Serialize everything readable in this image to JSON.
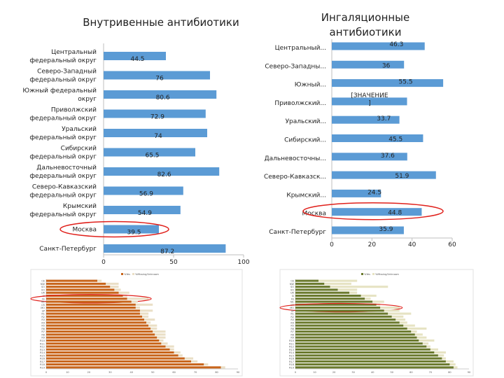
{
  "chart_data": [
    {
      "type": "bar",
      "orientation": "horizontal",
      "title": "Внутривенные антибиотики",
      "categories": [
        [
          "Центральный",
          "федеральный округ"
        ],
        [
          "Северо-Западный",
          "федеральный округ"
        ],
        [
          "Южный федеральный",
          "округ"
        ],
        [
          "Приволжский",
          "федеральный округ"
        ],
        [
          "Уральский",
          "федеральный округ"
        ],
        [
          "Сибирский",
          "федеральный округ"
        ],
        [
          "Дальневосточный",
          "федеральный округ"
        ],
        [
          "Северо-Кавказский",
          "федеральный округ"
        ],
        [
          "Крымский",
          "федеральный округ"
        ],
        [
          "Москва"
        ],
        [
          "Санкт-Петербург"
        ]
      ],
      "values": [
        44.5,
        76,
        80.6,
        72.9,
        74,
        65.5,
        82.6,
        56.9,
        54.9,
        39.5,
        87.2
      ],
      "value_labels": [
        "44.5",
        "76",
        "80.6",
        "72.9",
        "74",
        "65.5",
        "82.6",
        "56.9",
        "54.9",
        "39.5",
        "87.2"
      ],
      "xlim": [
        0,
        100
      ],
      "x_ticks": [
        "0",
        "50",
        "100"
      ],
      "bar_color": "#5B9BD5",
      "highlight": [
        "Москва"
      ],
      "highlight_color": "#E0201B"
    },
    {
      "type": "bar",
      "orientation": "horizontal",
      "title": "Ингаляционные антибиотики",
      "categories": [
        "Центральный...",
        "Северо-Западны...",
        "Южный...",
        "Приволжский...",
        "Уральский...",
        "Сибирский...",
        "Дальневосточны...",
        "Северо-Кавказск...",
        "Крымский...",
        "Москва",
        "Санкт-Петербург"
      ],
      "values": [
        46.3,
        36,
        55.5,
        37.5,
        33.7,
        45.5,
        37.6,
        51.9,
        24.5,
        44.8,
        35.9
      ],
      "value_labels": [
        "46.3",
        "36",
        "55.5",
        "[ЗНАЧЕНИЕ ]",
        "33.7",
        "45.5",
        "37.6",
        "51.9",
        "24.5",
        "44.8",
        "35.9"
      ],
      "xlim": [
        0,
        60
      ],
      "x_ticks": [
        "0",
        "20",
        "40",
        "60"
      ],
      "bar_color": "#5B9BD5",
      "highlight": [
        "Москва"
      ],
      "highlight_color": "#E0201B"
    },
    {
      "type": "bar",
      "orientation": "horizontal",
      "title": "",
      "legend": [
        "%Yes",
        "%Missing/Unknown"
      ],
      "categories": [
        "CE",
        "NW",
        "SO",
        "VO",
        "UR",
        "SI",
        "FE",
        "NC",
        "CR",
        "MO",
        "SP",
        "R1",
        "R2",
        "R3",
        "R4",
        "R5",
        "R6",
        "R7",
        "R8",
        "R9",
        "R10",
        "R11",
        "R12",
        "R13",
        "R14",
        "R15",
        "R16",
        "R17",
        "R18",
        "R19"
      ],
      "series": [
        {
          "name": "%Yes",
          "color": "#C8651B",
          "values": [
            24,
            28,
            30,
            32,
            34,
            36,
            38,
            40,
            42,
            42,
            44,
            44,
            45,
            46,
            47,
            48,
            49,
            50,
            51,
            52,
            53,
            54,
            56,
            58,
            60,
            62,
            65,
            68,
            74,
            82
          ]
        },
        {
          "name": "%Missing/Unknown",
          "color": "#EADFC6",
          "values": [
            2,
            6,
            4,
            3,
            5,
            2,
            10,
            3,
            8,
            2,
            6,
            4,
            3,
            5,
            2,
            4,
            3,
            6,
            5,
            4,
            2,
            3,
            4,
            2,
            3,
            2,
            4,
            3,
            2,
            2
          ]
        }
      ],
      "xlim": [
        0,
        90
      ],
      "x_ticks": [
        "0",
        "10",
        "20",
        "30",
        "40",
        "50",
        "60",
        "70",
        "80",
        "90"
      ],
      "highlight_row": 6,
      "highlight_color": "#E0201B"
    },
    {
      "type": "bar",
      "orientation": "horizontal",
      "title": "",
      "legend": [
        "%Yes",
        "%Missing/Unknown"
      ],
      "categories": [
        "CE",
        "NW",
        "SO",
        "VO",
        "UR",
        "SI",
        "FE",
        "NC",
        "CR",
        "MO",
        "SP",
        "R1",
        "R2",
        "R3",
        "R4",
        "R5",
        "R6",
        "R7",
        "R8",
        "R9",
        "R10",
        "R11",
        "R12",
        "R13",
        "R14",
        "R15",
        "R16",
        "R17",
        "R18",
        "R19"
      ],
      "series": [
        {
          "name": "%Yes",
          "color": "#6B7A2E",
          "values": [
            12,
            15,
            18,
            22,
            28,
            34,
            36,
            40,
            42,
            44,
            46,
            48,
            50,
            52,
            54,
            56,
            58,
            60,
            62,
            63,
            64,
            66,
            68,
            70,
            72,
            74,
            76,
            78,
            80,
            82
          ]
        },
        {
          "name": "%Missing/Unknown",
          "color": "#E6E3C3",
          "values": [
            20,
            14,
            30,
            10,
            4,
            8,
            3,
            6,
            2,
            10,
            8,
            12,
            6,
            5,
            4,
            6,
            10,
            3,
            4,
            5,
            8,
            3,
            2,
            4,
            6,
            3,
            2,
            4,
            3,
            2
          ]
        }
      ],
      "xlim": [
        0,
        90
      ],
      "x_ticks": [
        "0",
        "10",
        "20",
        "30",
        "40",
        "50",
        "60",
        "70",
        "80",
        "90"
      ],
      "highlight_row": 9,
      "highlight_color": "#E0201B"
    }
  ]
}
